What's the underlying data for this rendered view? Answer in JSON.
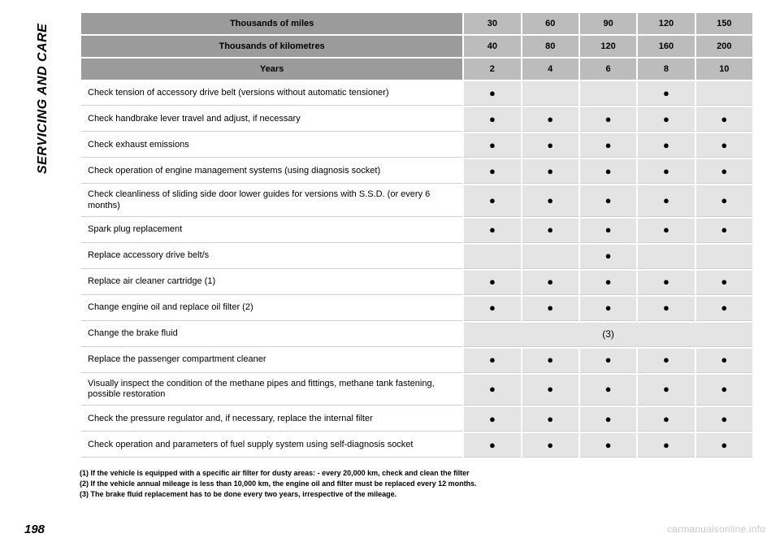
{
  "sidebar_label": "SERVICING AND CARE",
  "page_number": "198",
  "watermark": "carmanualsonline.info",
  "header_rows": [
    {
      "label": "Thousands of miles",
      "values": [
        "30",
        "60",
        "90",
        "120",
        "150"
      ]
    },
    {
      "label": "Thousands of kilometres",
      "values": [
        "40",
        "80",
        "120",
        "160",
        "200"
      ]
    },
    {
      "label": "Years",
      "values": [
        "2",
        "4",
        "6",
        "8",
        "10"
      ]
    }
  ],
  "rows": [
    {
      "label": "Check tension of accessory drive belt (versions without automatic tensioner)",
      "cells": [
        "●",
        "",
        "",
        "●",
        ""
      ]
    },
    {
      "label": "Check handbrake lever travel and adjust, if necessary",
      "cells": [
        "●",
        "●",
        "●",
        "●",
        "●"
      ]
    },
    {
      "label": "Check exhaust emissions",
      "cells": [
        "●",
        "●",
        "●",
        "●",
        "●"
      ]
    },
    {
      "label": "Check operation of engine management systems (using diagnosis socket)",
      "cells": [
        "●",
        "●",
        "●",
        "●",
        "●"
      ]
    },
    {
      "label": "Check cleanliness of sliding side door lower guides for versions with S.S.D. (or every 6 months)",
      "cells": [
        "●",
        "●",
        "●",
        "●",
        "●"
      ]
    },
    {
      "label": "Spark plug replacement",
      "cells": [
        "●",
        "●",
        "●",
        "●",
        "●"
      ]
    },
    {
      "label": "Replace accessory drive belt/s",
      "cells": [
        "",
        "",
        "●",
        "",
        ""
      ]
    },
    {
      "label": "Replace air cleaner cartridge (1)",
      "cells": [
        "●",
        "●",
        "●",
        "●",
        "●"
      ]
    },
    {
      "label": "Change engine oil and replace oil filter (2)",
      "cells": [
        "●",
        "●",
        "●",
        "●",
        "●"
      ]
    },
    {
      "label": "Change the brake fluid",
      "merged": "(3)"
    },
    {
      "label": "Replace the passenger compartment cleaner",
      "cells": [
        "●",
        "●",
        "●",
        "●",
        "●"
      ]
    },
    {
      "label": "Visually inspect the condition of the methane pipes and fittings, methane tank fastening, possible restoration",
      "cells": [
        "●",
        "●",
        "●",
        "●",
        "●"
      ]
    },
    {
      "label": "Check the pressure regulator and, if necessary, replace the internal filter",
      "cells": [
        "●",
        "●",
        "●",
        "●",
        "●"
      ]
    },
    {
      "label": "Check operation and parameters of fuel supply system using self-diagnosis socket",
      "cells": [
        "●",
        "●",
        "●",
        "●",
        "●"
      ]
    }
  ],
  "footnotes": [
    "(1) If the vehicle is equipped with a specific air filter for dusty areas: - every 20,000 km, check and clean the filter",
    "(2) If the vehicle annual mileage is less than 10,000 km, the engine oil and filter must be replaced every 12 months.",
    "(3) The brake fluid replacement has to be done every two years, irrespective of the mileage."
  ]
}
